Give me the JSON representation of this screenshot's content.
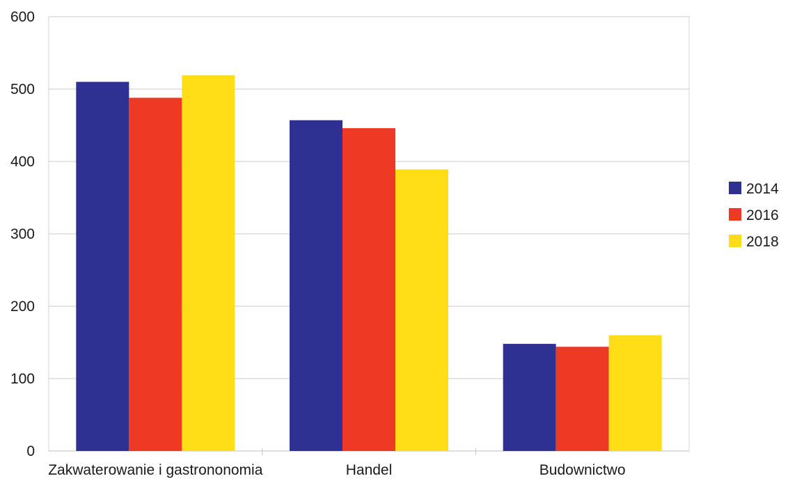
{
  "chart_data": {
    "type": "bar",
    "categories": [
      "Zakwaterowanie i gastrononomia",
      "Handel",
      "Budownictwo"
    ],
    "series": [
      {
        "name": "2014",
        "color": "#2e3192",
        "values": [
          510,
          457,
          148
        ]
      },
      {
        "name": "2016",
        "color": "#ee3a24",
        "values": [
          488,
          446,
          144
        ]
      },
      {
        "name": "2018",
        "color": "#ffde17",
        "values": [
          519,
          389,
          160
        ]
      }
    ],
    "yticks": [
      "0",
      "100",
      "200",
      "300",
      "400",
      "500",
      "600"
    ],
    "ylim": [
      0,
      600
    ],
    "grid": true,
    "legend": "right"
  }
}
